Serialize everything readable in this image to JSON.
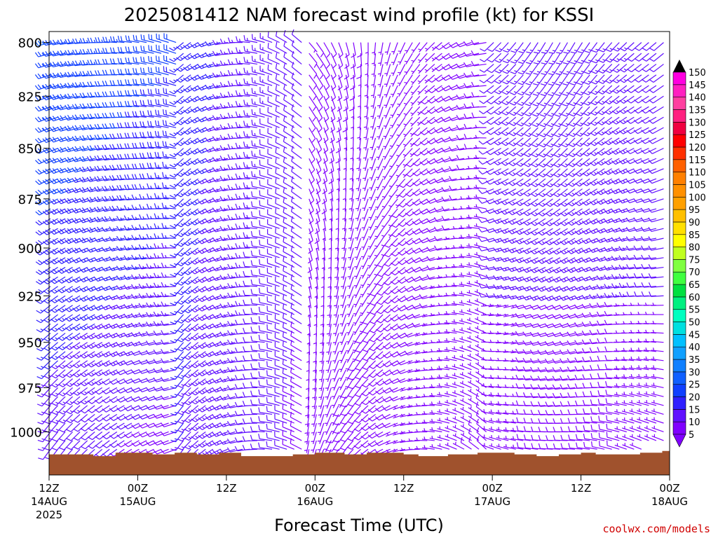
{
  "chart_data": {
    "type": "wind-barb-profile",
    "title": "2025081412 NAM forecast wind profile (kt) for KSSI",
    "xlabel": "Forecast Time (UTC)",
    "ylabel": "",
    "credit": "coolwx.com/models",
    "units": "kt",
    "y_scale": "log",
    "y_inverted": true,
    "ylim": [
      1025,
      795
    ],
    "y_ticks": [
      800,
      825,
      850,
      875,
      900,
      925,
      950,
      975,
      1000
    ],
    "x_range_hours": [
      0,
      84
    ],
    "x_ticks": [
      {
        "hour": 0,
        "line1": "12Z",
        "line2": "14AUG",
        "line3": "2025"
      },
      {
        "hour": 12,
        "line1": "00Z",
        "line2": "15AUG",
        "line3": ""
      },
      {
        "hour": 24,
        "line1": "12Z",
        "line2": "",
        "line3": ""
      },
      {
        "hour": 36,
        "line1": "00Z",
        "line2": "16AUG",
        "line3": ""
      },
      {
        "hour": 48,
        "line1": "12Z",
        "line2": "",
        "line3": ""
      },
      {
        "hour": 60,
        "line1": "00Z",
        "line2": "17AUG",
        "line3": ""
      },
      {
        "hour": 72,
        "line1": "12Z",
        "line2": "",
        "line3": ""
      },
      {
        "hour": 84,
        "line1": "00Z",
        "line2": "18AUG",
        "line3": ""
      }
    ],
    "pressure_levels": [
      800,
      805,
      810,
      815,
      820,
      825,
      830,
      835,
      840,
      845,
      850,
      855,
      860,
      865,
      870,
      875,
      880,
      885,
      890,
      895,
      900,
      905,
      910,
      915,
      920,
      925,
      930,
      935,
      940,
      945,
      950,
      955,
      960,
      965,
      970,
      975,
      980,
      985,
      990,
      995,
      1000,
      1005,
      1010,
      1015
    ],
    "forecast_hours": [
      0,
      1,
      2,
      3,
      4,
      5,
      6,
      7,
      8,
      9,
      10,
      11,
      12,
      13,
      14,
      15,
      16,
      17,
      18,
      19,
      20,
      21,
      22,
      23,
      24,
      25,
      26,
      27,
      28,
      29,
      30,
      31,
      32,
      33,
      34,
      35,
      36,
      37,
      38,
      39,
      40,
      41,
      42,
      43,
      44,
      45,
      46,
      47,
      48,
      49,
      50,
      51,
      52,
      53,
      54,
      55,
      56,
      57,
      58,
      59,
      60,
      61,
      62,
      63,
      64,
      65,
      66,
      67,
      68,
      69,
      70,
      71,
      72,
      73,
      74,
      75,
      76,
      77,
      78,
      79,
      80,
      81,
      82,
      83,
      84
    ],
    "surface_pressure": [
      [
        0,
        1013
      ],
      [
        3,
        1013
      ],
      [
        6,
        1014
      ],
      [
        9,
        1012
      ],
      [
        12,
        1012
      ],
      [
        14,
        1013
      ],
      [
        17,
        1012
      ],
      [
        20,
        1013
      ],
      [
        23,
        1012
      ],
      [
        26,
        1014
      ],
      [
        30,
        1014
      ],
      [
        33,
        1013
      ],
      [
        36,
        1012
      ],
      [
        40,
        1013
      ],
      [
        43,
        1012
      ],
      [
        48,
        1013
      ],
      [
        50,
        1014
      ],
      [
        54,
        1013
      ],
      [
        58,
        1012
      ],
      [
        60,
        1012
      ],
      [
        63,
        1013
      ],
      [
        66,
        1014
      ],
      [
        69,
        1013
      ],
      [
        72,
        1012
      ],
      [
        74,
        1013
      ],
      [
        77,
        1013
      ],
      [
        80,
        1012
      ],
      [
        83,
        1011
      ],
      [
        84,
        1012
      ]
    ],
    "colorbar": {
      "levels": [
        5,
        10,
        15,
        20,
        25,
        30,
        35,
        40,
        45,
        50,
        55,
        60,
        65,
        70,
        75,
        80,
        85,
        90,
        95,
        100,
        105,
        110,
        115,
        120,
        125,
        130,
        135,
        140,
        145,
        150
      ],
      "colors": [
        "#8000ff",
        "#6010ff",
        "#3020ff",
        "#1040ff",
        "#1060ff",
        "#1080ff",
        "#10a0ff",
        "#00c0ff",
        "#00e0e0",
        "#00ffc0",
        "#00f080",
        "#00e040",
        "#40ff40",
        "#80ff40",
        "#c0ff20",
        "#ffff00",
        "#ffe000",
        "#ffc000",
        "#ffa000",
        "#ff9000",
        "#ff8000",
        "#ff6000",
        "#ff3000",
        "#ff0000",
        "#f00040",
        "#ff2080",
        "#ff40a0",
        "#ff20c0",
        "#ff00e0",
        "#ff00ff"
      ]
    },
    "colors": {
      "surface_fill": "#a0522d",
      "frame": "#000000"
    }
  }
}
